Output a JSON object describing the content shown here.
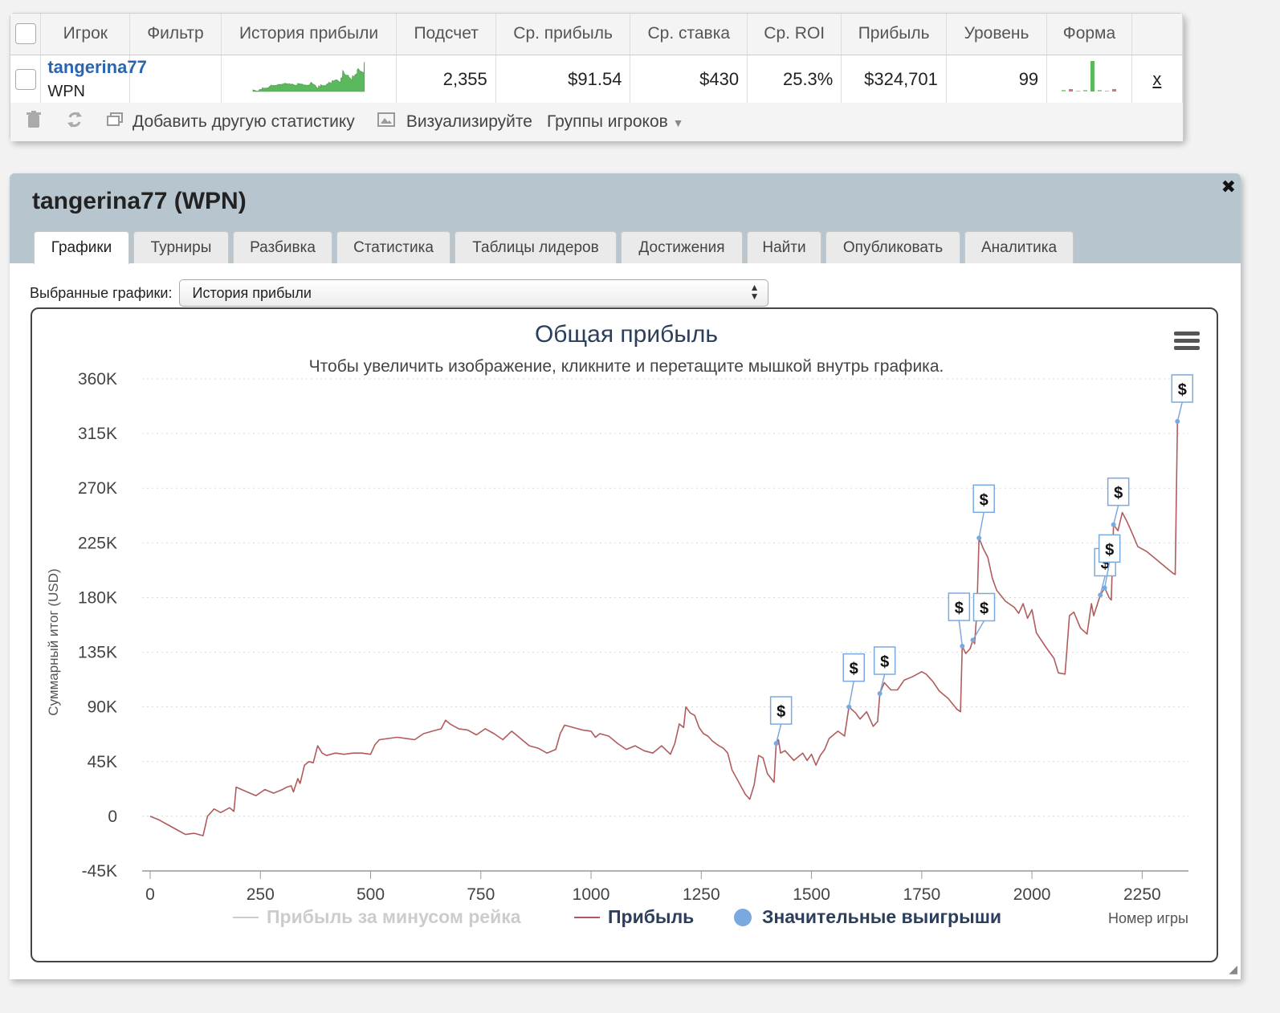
{
  "stats_table": {
    "headers": [
      "Игрок",
      "Фильтр",
      "История прибыли",
      "Подсчет",
      "Ср. прибыль",
      "Ср. ставка",
      "Ср. ROI",
      "Прибыль",
      "Уровень",
      "Форма"
    ],
    "row": {
      "player": "tangerina77",
      "network": "WPN",
      "filter": "",
      "count": "2,355",
      "avg_profit": "$91.54",
      "avg_stake": "$430",
      "avg_roi": "25.3%",
      "profit": "$324,701",
      "level": "99",
      "remove": "x"
    },
    "toolbar": {
      "add_stat": "Добавить другую статистику",
      "visualize": "Визуализируйте",
      "player_groups": "Группы игроков"
    },
    "colors": {
      "sparkline": "#5cb85c",
      "link": "#2c64b0"
    }
  },
  "panel": {
    "title": "tangerina77 (WPN)",
    "tabs": [
      "Графики",
      "Турниры",
      "Разбивка",
      "Статистика",
      "Таблицы лидеров",
      "Достижения",
      "Найти",
      "Опубликовать",
      "Аналитика"
    ],
    "active_tab": 0,
    "selector_label": "Выбранные графики:",
    "selector_value": "История прибыли"
  },
  "chart_data": {
    "type": "line",
    "title": "Общая прибыль",
    "subtitle": "Чтобы увеличить изображение, кликните и перетащите мышкой внутрь графика.",
    "xlabel": "Номер игры",
    "ylabel": "Суммарный итог (USD)",
    "xlim": [
      0,
      2355
    ],
    "ylim": [
      -45000,
      360000
    ],
    "x_ticks": [
      "0",
      "250",
      "500",
      "750",
      "1000",
      "1250",
      "1500",
      "1750",
      "2000",
      "2250"
    ],
    "y_ticks": [
      "-45K",
      "0",
      "45K",
      "90K",
      "135K",
      "180K",
      "225K",
      "270K",
      "315K",
      "360K"
    ],
    "grid": true,
    "legend_position": "bottom",
    "series": [
      {
        "name": "Прибыль за минусом рейка",
        "color": "#cccccc",
        "visible": false,
        "points": []
      },
      {
        "name": "Прибыль",
        "color": "#b05c5c",
        "visible": true,
        "points": [
          [
            0,
            0
          ],
          [
            20,
            -3000
          ],
          [
            40,
            -7000
          ],
          [
            60,
            -11000
          ],
          [
            80,
            -15000
          ],
          [
            100,
            -14000
          ],
          [
            120,
            -16000
          ],
          [
            130,
            0
          ],
          [
            145,
            6000
          ],
          [
            160,
            3000
          ],
          [
            180,
            7000
          ],
          [
            190,
            4000
          ],
          [
            195,
            24000
          ],
          [
            220,
            20000
          ],
          [
            240,
            17000
          ],
          [
            260,
            22000
          ],
          [
            280,
            19000
          ],
          [
            300,
            22000
          ],
          [
            310,
            24000
          ],
          [
            320,
            25000
          ],
          [
            325,
            20000
          ],
          [
            335,
            31000
          ],
          [
            340,
            27000
          ],
          [
            350,
            42000
          ],
          [
            360,
            45000
          ],
          [
            370,
            44000
          ],
          [
            380,
            58000
          ],
          [
            390,
            52000
          ],
          [
            400,
            50000
          ],
          [
            420,
            52000
          ],
          [
            440,
            51000
          ],
          [
            460,
            52000
          ],
          [
            480,
            52000
          ],
          [
            500,
            51000
          ],
          [
            510,
            59000
          ],
          [
            520,
            63000
          ],
          [
            560,
            65000
          ],
          [
            600,
            63000
          ],
          [
            620,
            68000
          ],
          [
            640,
            70000
          ],
          [
            660,
            72000
          ],
          [
            670,
            79000
          ],
          [
            680,
            76000
          ],
          [
            700,
            72000
          ],
          [
            720,
            71000
          ],
          [
            740,
            67000
          ],
          [
            760,
            72000
          ],
          [
            780,
            68000
          ],
          [
            800,
            63000
          ],
          [
            820,
            70000
          ],
          [
            840,
            64000
          ],
          [
            860,
            58000
          ],
          [
            880,
            56000
          ],
          [
            900,
            52000
          ],
          [
            920,
            55000
          ],
          [
            930,
            68000
          ],
          [
            940,
            75000
          ],
          [
            960,
            73000
          ],
          [
            980,
            71000
          ],
          [
            1000,
            70000
          ],
          [
            1010,
            65000
          ],
          [
            1020,
            68000
          ],
          [
            1040,
            66000
          ],
          [
            1060,
            60000
          ],
          [
            1080,
            55000
          ],
          [
            1100,
            58000
          ],
          [
            1120,
            54000
          ],
          [
            1140,
            52000
          ],
          [
            1160,
            58000
          ],
          [
            1180,
            51000
          ],
          [
            1190,
            60000
          ],
          [
            1200,
            76000
          ],
          [
            1210,
            73000
          ],
          [
            1215,
            90000
          ],
          [
            1225,
            85000
          ],
          [
            1235,
            83000
          ],
          [
            1245,
            73000
          ],
          [
            1255,
            68000
          ],
          [
            1265,
            66000
          ],
          [
            1275,
            62000
          ],
          [
            1290,
            58000
          ],
          [
            1300,
            56000
          ],
          [
            1310,
            52000
          ],
          [
            1320,
            38000
          ],
          [
            1335,
            28000
          ],
          [
            1350,
            18000
          ],
          [
            1360,
            14000
          ],
          [
            1370,
            26000
          ],
          [
            1380,
            50000
          ],
          [
            1390,
            48000
          ],
          [
            1400,
            35000
          ],
          [
            1415,
            28000
          ],
          [
            1420,
            60000
          ],
          [
            1425,
            63000
          ],
          [
            1430,
            52000
          ],
          [
            1440,
            54000
          ],
          [
            1460,
            46000
          ],
          [
            1480,
            52000
          ],
          [
            1490,
            46000
          ],
          [
            1500,
            51000
          ],
          [
            1510,
            42000
          ],
          [
            1520,
            50000
          ],
          [
            1530,
            55000
          ],
          [
            1540,
            64000
          ],
          [
            1560,
            70000
          ],
          [
            1575,
            66000
          ],
          [
            1585,
            90000
          ],
          [
            1600,
            85000
          ],
          [
            1610,
            80000
          ],
          [
            1625,
            86000
          ],
          [
            1640,
            74000
          ],
          [
            1650,
            78000
          ],
          [
            1655,
            101000
          ],
          [
            1665,
            110000
          ],
          [
            1680,
            104000
          ],
          [
            1695,
            104000
          ],
          [
            1710,
            112000
          ],
          [
            1730,
            115000
          ],
          [
            1750,
            119000
          ],
          [
            1760,
            117000
          ],
          [
            1775,
            111000
          ],
          [
            1790,
            103000
          ],
          [
            1810,
            97000
          ],
          [
            1830,
            88000
          ],
          [
            1838,
            86000
          ],
          [
            1842,
            140000
          ],
          [
            1850,
            134000
          ],
          [
            1860,
            138000
          ],
          [
            1866,
            145000
          ],
          [
            1870,
            142000
          ],
          [
            1875,
            168000
          ],
          [
            1880,
            229000
          ],
          [
            1890,
            220000
          ],
          [
            1900,
            213000
          ],
          [
            1910,
            196000
          ],
          [
            1920,
            186000
          ],
          [
            1940,
            177000
          ],
          [
            1960,
            172000
          ],
          [
            1970,
            167000
          ],
          [
            1980,
            175000
          ],
          [
            1990,
            163000
          ],
          [
            2000,
            170000
          ],
          [
            2010,
            151000
          ],
          [
            2030,
            140000
          ],
          [
            2050,
            130000
          ],
          [
            2060,
            118000
          ],
          [
            2075,
            117000
          ],
          [
            2085,
            165000
          ],
          [
            2095,
            168000
          ],
          [
            2110,
            155000
          ],
          [
            2125,
            150000
          ],
          [
            2135,
            175000
          ],
          [
            2140,
            165000
          ],
          [
            2155,
            182000
          ],
          [
            2165,
            188000
          ],
          [
            2175,
            180000
          ],
          [
            2180,
            178000
          ],
          [
            2185,
            240000
          ],
          [
            2195,
            235000
          ],
          [
            2205,
            250000
          ],
          [
            2215,
            243000
          ],
          [
            2225,
            235000
          ],
          [
            2240,
            222000
          ],
          [
            2260,
            218000
          ],
          [
            2280,
            212000
          ],
          [
            2300,
            206000
          ],
          [
            2320,
            200000
          ],
          [
            2325,
            199000
          ],
          [
            2330,
            325000
          ],
          [
            2335,
            325000
          ]
        ]
      }
    ],
    "big_wins": {
      "name": "Значительные выигрыши",
      "color": "#7aa9e0",
      "marker_label": "$",
      "x": [
        1420,
        1585,
        1655,
        1842,
        1866,
        1880,
        2155,
        2165,
        2185,
        2330
      ]
    }
  }
}
